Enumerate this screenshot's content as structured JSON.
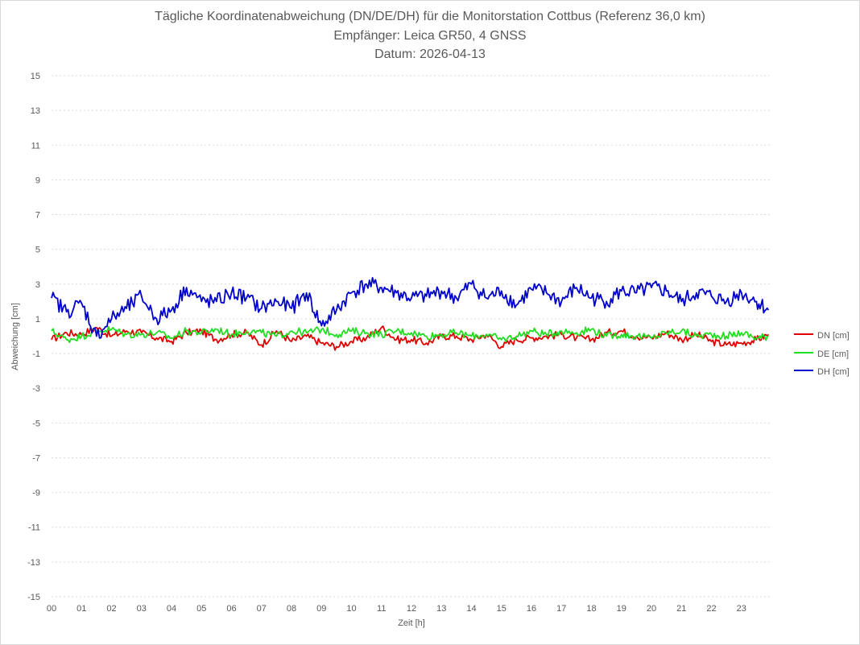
{
  "title_lines": [
    "Tägliche Koordinatenabweichung (DN/DE/DH) für die Monitorstation Cottbus (Referenz 36,0 km)",
    "Empfänger: Leica GR50, 4 GNSS",
    "Datum: 2026-04-13"
  ],
  "chart_data": {
    "type": "line",
    "title": "Tägliche Koordinatenabweichung (DN/DE/DH) für die Monitorstation Cottbus (Referenz 36,0 km)",
    "subtitle": [
      "Empfänger: Leica GR50, 4 GNSS",
      "Datum: 2026-04-13"
    ],
    "xlabel": "Zeit [h]",
    "ylabel": "Abweichung [cm]",
    "xlim": [
      0,
      24
    ],
    "ylim": [
      -15,
      15
    ],
    "x_ticks": [
      "00",
      "01",
      "02",
      "03",
      "04",
      "05",
      "06",
      "07",
      "08",
      "09",
      "10",
      "11",
      "12",
      "13",
      "14",
      "15",
      "16",
      "17",
      "18",
      "19",
      "20",
      "21",
      "22",
      "23"
    ],
    "y_ticks": [
      15,
      13,
      11,
      9,
      7,
      5,
      3,
      1,
      -1,
      -3,
      -5,
      -7,
      -9,
      -11,
      -13,
      -15
    ],
    "grid": "horizontal dotted",
    "legend_position": "right",
    "x": [
      0.0,
      0.5,
      1.0,
      1.5,
      2.0,
      2.5,
      3.0,
      3.5,
      4.0,
      4.5,
      5.0,
      5.5,
      6.0,
      6.5,
      7.0,
      7.5,
      8.0,
      8.5,
      9.0,
      9.5,
      10.0,
      10.5,
      11.0,
      11.5,
      12.0,
      12.5,
      13.0,
      13.5,
      14.0,
      14.5,
      15.0,
      15.5,
      16.0,
      16.5,
      17.0,
      17.5,
      18.0,
      18.5,
      19.0,
      19.5,
      20.0,
      20.5,
      21.0,
      21.5,
      22.0,
      22.5,
      23.0,
      23.5,
      23.9
    ],
    "series": [
      {
        "name": "DN [cm]",
        "color": "#e00000",
        "values": [
          -0.2,
          0.2,
          0.1,
          0.5,
          0.0,
          0.3,
          0.2,
          -0.1,
          -0.3,
          0.2,
          0.3,
          -0.2,
          0.1,
          0.2,
          -0.5,
          0.3,
          -0.3,
          0.0,
          -0.4,
          -0.6,
          -0.3,
          -0.1,
          0.5,
          -0.2,
          -0.2,
          -0.4,
          0.0,
          0.0,
          -0.2,
          0.1,
          -0.6,
          -0.2,
          -0.1,
          0.0,
          0.1,
          -0.1,
          -0.2,
          0.2,
          0.3,
          0.0,
          -0.1,
          0.2,
          -0.2,
          0.1,
          -0.3,
          -0.5,
          -0.4,
          -0.2,
          0.1
        ]
      },
      {
        "name": "DE [cm]",
        "color": "#22dd22",
        "values": [
          0.3,
          -0.2,
          0.0,
          0.3,
          0.4,
          0.1,
          0.1,
          0.2,
          -0.1,
          0.3,
          0.2,
          0.4,
          0.1,
          0.3,
          0.2,
          0.0,
          0.3,
          0.2,
          0.4,
          0.1,
          0.3,
          0.2,
          0.1,
          0.3,
          0.2,
          0.0,
          0.1,
          0.2,
          0.0,
          0.1,
          -0.2,
          0.0,
          0.3,
          0.1,
          0.3,
          0.2,
          0.4,
          0.0,
          0.1,
          0.0,
          -0.1,
          0.2,
          0.3,
          0.0,
          0.1,
          0.0,
          0.2,
          -0.1,
          0.0
        ]
      },
      {
        "name": "DH [cm]",
        "color": "#0000cc",
        "values": [
          2.2,
          1.4,
          1.9,
          0.0,
          1.0,
          1.6,
          2.3,
          1.0,
          1.5,
          2.8,
          2.0,
          2.0,
          2.5,
          2.2,
          1.6,
          2.0,
          1.6,
          2.5,
          0.6,
          1.5,
          2.5,
          3.0,
          2.8,
          2.5,
          2.2,
          2.3,
          2.6,
          2.2,
          3.0,
          2.2,
          2.6,
          1.8,
          2.7,
          2.5,
          2.0,
          2.8,
          2.2,
          2.0,
          2.6,
          2.5,
          2.8,
          2.6,
          2.0,
          2.5,
          2.3,
          2.0,
          2.5,
          2.0,
          1.5
        ]
      }
    ]
  }
}
